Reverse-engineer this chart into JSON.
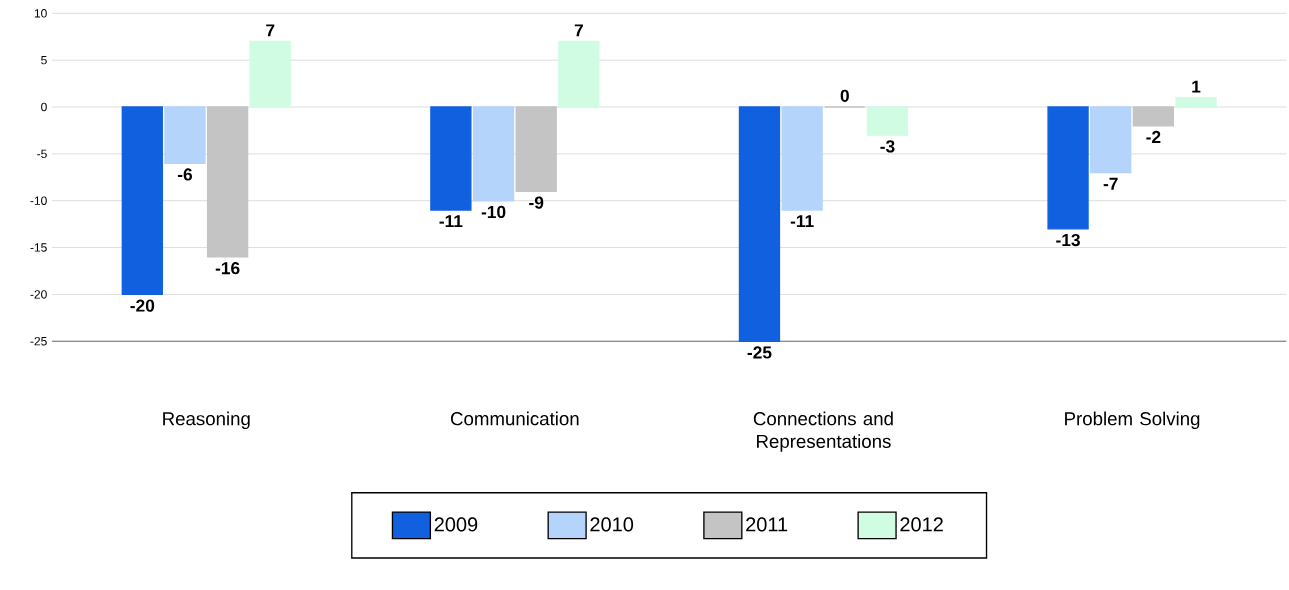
{
  "chart_data": {
    "type": "bar",
    "categories": [
      "Reasoning",
      "Communication",
      "Connections and Representations",
      "Problem Solving"
    ],
    "series": [
      {
        "name": "2009",
        "color": "#1060e0",
        "values": [
          -20,
          -11,
          -25,
          -13
        ]
      },
      {
        "name": "2010",
        "color": "#b4d4fc",
        "values": [
          -6,
          -10,
          -11,
          -7
        ]
      },
      {
        "name": "2011",
        "color": "#c4c4c4",
        "values": [
          -16,
          -9,
          0,
          -2
        ]
      },
      {
        "name": "2012",
        "color": "#d0fce4",
        "values": [
          7,
          7,
          -3,
          1
        ]
      }
    ],
    "ylim": [
      -25,
      10
    ],
    "yticks": [
      -25,
      -20,
      -15,
      -10,
      -5,
      0,
      5,
      10
    ],
    "grid": "y",
    "legend": "bottom",
    "data_labels": true
  }
}
